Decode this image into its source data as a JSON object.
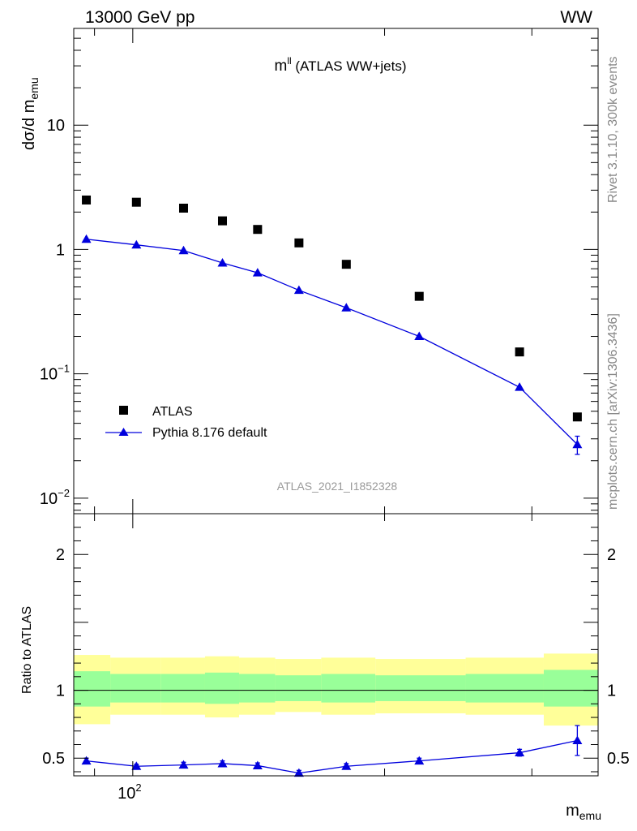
{
  "header": {
    "energy_label": "13000 GeV pp",
    "process_label": "WW"
  },
  "side_labels": {
    "rivet": "Rivet 3.1.10,  300k events",
    "mcplots": "mcplots.cern.ch [arXiv:1306.3436]"
  },
  "chart_data": [
    {
      "type": "scatter",
      "panel": "main",
      "title_base": "m",
      "title_sup": "ll",
      "title_rest": " (ATLAS WW+jets)",
      "ylabel_base": "dσ/d m",
      "ylabel_sub": "emu",
      "xscale": "log",
      "yscale": "log",
      "xlim": [
        85,
        360
      ],
      "ylim": [
        0.0075,
        60
      ],
      "y_ticks": [
        {
          "value": 10,
          "label": "10"
        },
        {
          "value": 1,
          "label": "1"
        },
        {
          "value": 0.1,
          "label": "10",
          "sup": "−1"
        },
        {
          "value": 0.01,
          "label": "10",
          "sup": "−2"
        }
      ],
      "watermark": "ATLAS_2021_I1852328",
      "legend_position": "bottom-left",
      "series": [
        {
          "name": "ATLAS",
          "marker": "square",
          "color": "#000000",
          "x": [
            88,
            101,
            115,
            128,
            141,
            158,
            180,
            220,
            290,
            340
          ],
          "y": [
            2.5,
            2.4,
            2.15,
            1.7,
            1.45,
            1.13,
            0.76,
            0.42,
            0.15,
            0.045
          ]
        },
        {
          "name": "Pythia 8.176 default",
          "marker": "triangle",
          "color": "#0000dd",
          "x": [
            88,
            101,
            115,
            128,
            141,
            158,
            180,
            220,
            290,
            340
          ],
          "y": [
            1.21,
            1.09,
            0.98,
            0.78,
            0.65,
            0.47,
            0.34,
            0.2,
            0.078,
            0.027
          ],
          "yerr": [
            0,
            0,
            0,
            0,
            0,
            0,
            0,
            0,
            0,
            0.0045
          ]
        }
      ]
    },
    {
      "type": "scatter",
      "panel": "ratio",
      "ylabel": "Ratio to ATLAS",
      "xlabel_base": "m",
      "xlabel_sub": "emu",
      "xscale": "log",
      "xlim": [
        85,
        360
      ],
      "ylim": [
        0.37,
        2.3
      ],
      "y_ticks": [
        {
          "value": 2,
          "label": "2"
        },
        {
          "value": 1,
          "label": "1"
        },
        {
          "value": 0.5,
          "label": "0.5"
        }
      ],
      "x_ticks": [
        {
          "value": 100,
          "label": "10",
          "sup": "2"
        }
      ],
      "bands": {
        "edges": [
          85,
          94,
          108,
          122,
          134,
          148,
          168,
          195,
          250,
          310,
          360
        ],
        "yellow_low": [
          0.75,
          0.82,
          0.82,
          0.8,
          0.82,
          0.84,
          0.82,
          0.83,
          0.82,
          0.74
        ],
        "yellow_high": [
          1.26,
          1.24,
          1.24,
          1.25,
          1.24,
          1.23,
          1.24,
          1.23,
          1.24,
          1.27
        ],
        "green_low": [
          0.88,
          0.91,
          0.91,
          0.9,
          0.91,
          0.92,
          0.91,
          0.92,
          0.91,
          0.88
        ],
        "green_high": [
          1.14,
          1.12,
          1.12,
          1.13,
          1.12,
          1.11,
          1.12,
          1.11,
          1.12,
          1.15
        ]
      },
      "series": [
        {
          "name": "Pythia 8.176 default / ATLAS",
          "marker": "triangle",
          "color": "#0000dd",
          "x": [
            88,
            101,
            115,
            128,
            141,
            158,
            180,
            220,
            290,
            340
          ],
          "y": [
            0.48,
            0.44,
            0.45,
            0.46,
            0.445,
            0.39,
            0.44,
            0.48,
            0.54,
            0.63
          ],
          "yerr": [
            0.02,
            0.015,
            0.02,
            0.02,
            0.02,
            0.02,
            0.02,
            0.02,
            0.025,
            0.11
          ]
        }
      ]
    }
  ]
}
